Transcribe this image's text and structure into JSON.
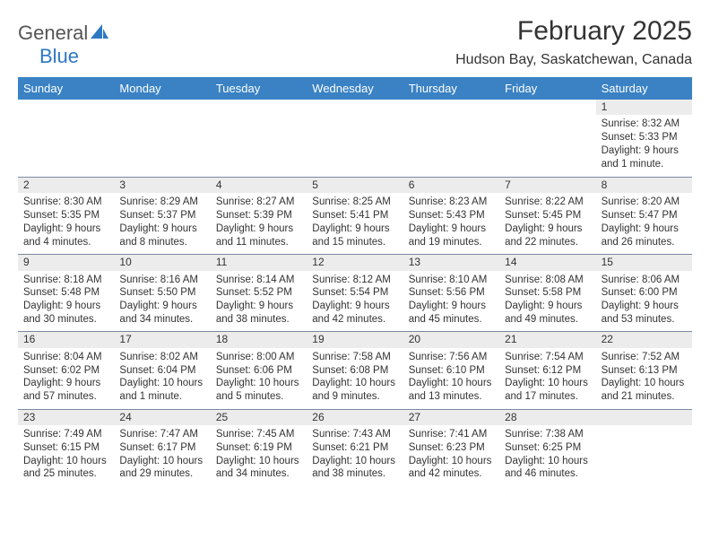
{
  "logo": {
    "word1": "General",
    "word2": "Blue"
  },
  "title": "February 2025",
  "location": "Hudson Bay, Saskatchewan, Canada",
  "dayNames": [
    "Sunday",
    "Monday",
    "Tuesday",
    "Wednesday",
    "Thursday",
    "Friday",
    "Saturday"
  ],
  "colors": {
    "header_bg": "#3a82c2",
    "header_text": "#ffffff",
    "numbar_bg": "#ececec",
    "numbar_border": "#7a8aa0",
    "body_text": "#333333",
    "logo_gray": "#555555",
    "logo_blue": "#2e78c2",
    "page_bg": "#ffffff"
  },
  "weeks": [
    [
      null,
      null,
      null,
      null,
      null,
      null,
      {
        "n": "1",
        "sr": "Sunrise: 8:32 AM",
        "ss": "Sunset: 5:33 PM",
        "dl": "Daylight: 9 hours and 1 minute."
      }
    ],
    [
      {
        "n": "2",
        "sr": "Sunrise: 8:30 AM",
        "ss": "Sunset: 5:35 PM",
        "dl": "Daylight: 9 hours and 4 minutes."
      },
      {
        "n": "3",
        "sr": "Sunrise: 8:29 AM",
        "ss": "Sunset: 5:37 PM",
        "dl": "Daylight: 9 hours and 8 minutes."
      },
      {
        "n": "4",
        "sr": "Sunrise: 8:27 AM",
        "ss": "Sunset: 5:39 PM",
        "dl": "Daylight: 9 hours and 11 minutes."
      },
      {
        "n": "5",
        "sr": "Sunrise: 8:25 AM",
        "ss": "Sunset: 5:41 PM",
        "dl": "Daylight: 9 hours and 15 minutes."
      },
      {
        "n": "6",
        "sr": "Sunrise: 8:23 AM",
        "ss": "Sunset: 5:43 PM",
        "dl": "Daylight: 9 hours and 19 minutes."
      },
      {
        "n": "7",
        "sr": "Sunrise: 8:22 AM",
        "ss": "Sunset: 5:45 PM",
        "dl": "Daylight: 9 hours and 22 minutes."
      },
      {
        "n": "8",
        "sr": "Sunrise: 8:20 AM",
        "ss": "Sunset: 5:47 PM",
        "dl": "Daylight: 9 hours and 26 minutes."
      }
    ],
    [
      {
        "n": "9",
        "sr": "Sunrise: 8:18 AM",
        "ss": "Sunset: 5:48 PM",
        "dl": "Daylight: 9 hours and 30 minutes."
      },
      {
        "n": "10",
        "sr": "Sunrise: 8:16 AM",
        "ss": "Sunset: 5:50 PM",
        "dl": "Daylight: 9 hours and 34 minutes."
      },
      {
        "n": "11",
        "sr": "Sunrise: 8:14 AM",
        "ss": "Sunset: 5:52 PM",
        "dl": "Daylight: 9 hours and 38 minutes."
      },
      {
        "n": "12",
        "sr": "Sunrise: 8:12 AM",
        "ss": "Sunset: 5:54 PM",
        "dl": "Daylight: 9 hours and 42 minutes."
      },
      {
        "n": "13",
        "sr": "Sunrise: 8:10 AM",
        "ss": "Sunset: 5:56 PM",
        "dl": "Daylight: 9 hours and 45 minutes."
      },
      {
        "n": "14",
        "sr": "Sunrise: 8:08 AM",
        "ss": "Sunset: 5:58 PM",
        "dl": "Daylight: 9 hours and 49 minutes."
      },
      {
        "n": "15",
        "sr": "Sunrise: 8:06 AM",
        "ss": "Sunset: 6:00 PM",
        "dl": "Daylight: 9 hours and 53 minutes."
      }
    ],
    [
      {
        "n": "16",
        "sr": "Sunrise: 8:04 AM",
        "ss": "Sunset: 6:02 PM",
        "dl": "Daylight: 9 hours and 57 minutes."
      },
      {
        "n": "17",
        "sr": "Sunrise: 8:02 AM",
        "ss": "Sunset: 6:04 PM",
        "dl": "Daylight: 10 hours and 1 minute."
      },
      {
        "n": "18",
        "sr": "Sunrise: 8:00 AM",
        "ss": "Sunset: 6:06 PM",
        "dl": "Daylight: 10 hours and 5 minutes."
      },
      {
        "n": "19",
        "sr": "Sunrise: 7:58 AM",
        "ss": "Sunset: 6:08 PM",
        "dl": "Daylight: 10 hours and 9 minutes."
      },
      {
        "n": "20",
        "sr": "Sunrise: 7:56 AM",
        "ss": "Sunset: 6:10 PM",
        "dl": "Daylight: 10 hours and 13 minutes."
      },
      {
        "n": "21",
        "sr": "Sunrise: 7:54 AM",
        "ss": "Sunset: 6:12 PM",
        "dl": "Daylight: 10 hours and 17 minutes."
      },
      {
        "n": "22",
        "sr": "Sunrise: 7:52 AM",
        "ss": "Sunset: 6:13 PM",
        "dl": "Daylight: 10 hours and 21 minutes."
      }
    ],
    [
      {
        "n": "23",
        "sr": "Sunrise: 7:49 AM",
        "ss": "Sunset: 6:15 PM",
        "dl": "Daylight: 10 hours and 25 minutes."
      },
      {
        "n": "24",
        "sr": "Sunrise: 7:47 AM",
        "ss": "Sunset: 6:17 PM",
        "dl": "Daylight: 10 hours and 29 minutes."
      },
      {
        "n": "25",
        "sr": "Sunrise: 7:45 AM",
        "ss": "Sunset: 6:19 PM",
        "dl": "Daylight: 10 hours and 34 minutes."
      },
      {
        "n": "26",
        "sr": "Sunrise: 7:43 AM",
        "ss": "Sunset: 6:21 PM",
        "dl": "Daylight: 10 hours and 38 minutes."
      },
      {
        "n": "27",
        "sr": "Sunrise: 7:41 AM",
        "ss": "Sunset: 6:23 PM",
        "dl": "Daylight: 10 hours and 42 minutes."
      },
      {
        "n": "28",
        "sr": "Sunrise: 7:38 AM",
        "ss": "Sunset: 6:25 PM",
        "dl": "Daylight: 10 hours and 46 minutes."
      },
      null
    ]
  ]
}
